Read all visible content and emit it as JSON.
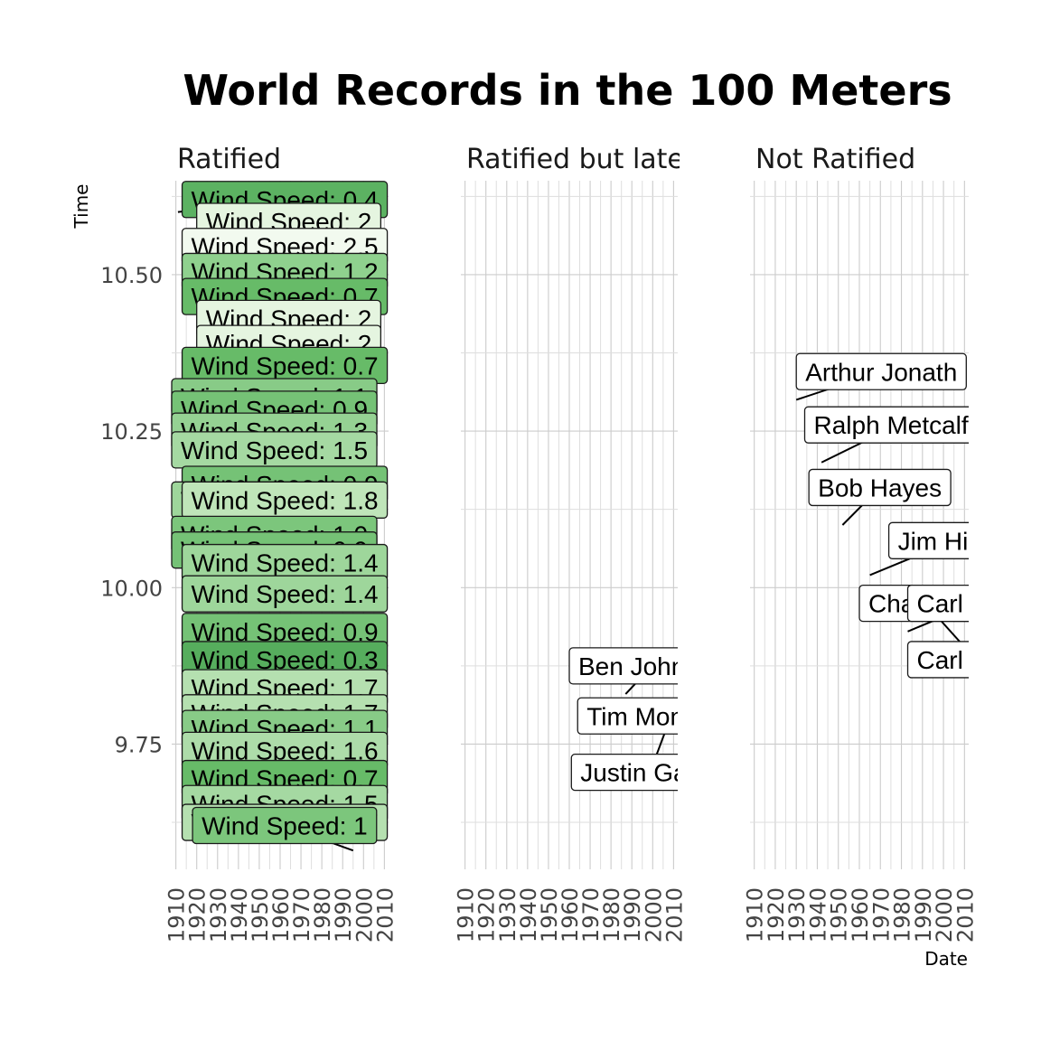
{
  "chart_data": {
    "type": "faceted-label-plot",
    "title": "World Records in the 100 Meters",
    "xlabel": "Date",
    "ylabel": "Time",
    "ylim": [
      9.55,
      10.65
    ],
    "xlim": [
      1908,
      2012
    ],
    "y_ticks": [
      {
        "value": 9.75,
        "label": "9.75"
      },
      {
        "value": 10.0,
        "label": "10.00"
      },
      {
        "value": 10.25,
        "label": "10.25"
      },
      {
        "value": 10.5,
        "label": "10.50"
      }
    ],
    "x_ticks": [
      "1910",
      "1920",
      "1930",
      "1940",
      "1950",
      "1960",
      "1970",
      "1980",
      "1990",
      "2000",
      "2010"
    ],
    "facets": [
      {
        "name": "Ratified",
        "points": [
          {
            "x": 1911,
            "y": 10.6,
            "lx": 1913,
            "ly": 10.62,
            "label": "Wind Speed: 0.4",
            "fill": "#5cb262"
          },
          {
            "x": 1913,
            "y": 10.56,
            "lx": 1920,
            "ly": 10.585,
            "label": "Wind Speed: 2",
            "fill": "#e5f5e0"
          },
          {
            "x": 1917,
            "y": 10.53,
            "lx": 1913,
            "ly": 10.545,
            "label": "Wind Speed: 2.5",
            "fill": "#f2faef"
          },
          {
            "x": 1930,
            "y": 10.55,
            "lx": 1913,
            "ly": 10.505,
            "label": "Wind Speed: 1.2",
            "fill": "#8fd18e"
          },
          {
            "x": 1926,
            "y": 10.42,
            "lx": 1913,
            "ly": 10.465,
            "label": "Wind Speed: 0.7",
            "fill": "#67bb68"
          },
          {
            "x": 1935,
            "y": 10.45,
            "lx": 1920,
            "ly": 10.43,
            "label": "Wind Speed: 2",
            "fill": "#e5f5e0"
          },
          {
            "x": 1933,
            "y": 10.38,
            "lx": 1920,
            "ly": 10.39,
            "label": "Wind Speed: 2",
            "fill": "#e5f5e0"
          },
          {
            "x": 1936,
            "y": 10.35,
            "lx": 1913,
            "ly": 10.355,
            "label": "Wind Speed: 0.7",
            "fill": "#67bb68"
          },
          {
            "x": 1940,
            "y": 10.3,
            "lx": 1908,
            "ly": 10.305,
            "label": "Wind Speed: 1.1",
            "fill": "#88cb87"
          },
          {
            "x": 1941,
            "y": 10.28,
            "lx": 1908,
            "ly": 10.285,
            "label": "Wind Speed: 0.9",
            "fill": "#75c276"
          },
          {
            "x": 1945,
            "y": 10.22,
            "lx": 1908,
            "ly": 10.25,
            "label": "Wind Speed: 1.3",
            "fill": "#95d293"
          },
          {
            "x": 1935,
            "y": 10.2,
            "lx": 1908,
            "ly": 10.22,
            "label": "Wind Speed: 1.5",
            "fill": "#a5d9a2"
          },
          {
            "x": 1950,
            "y": 10.18,
            "lx": 1913,
            "ly": 10.165,
            "label": "Wind Speed: 0.9",
            "fill": "#75c276"
          },
          {
            "x": 1955,
            "y": 10.15,
            "lx": 1908,
            "ly": 10.14,
            "label": "Wind Speed: 1.4",
            "fill": "#9ed69b"
          },
          {
            "x": 1960,
            "y": 10.1,
            "lx": 1913,
            "ly": 10.14,
            "label": "Wind Speed: 1.8",
            "fill": "#bfe5b9"
          },
          {
            "x": 1962,
            "y": 10.08,
            "lx": 1908,
            "ly": 10.085,
            "label": "Wind Speed: 1.0",
            "fill": "#7cc67c"
          },
          {
            "x": 1964,
            "y": 10.05,
            "lx": 1908,
            "ly": 10.06,
            "label": "Wind Speed: 0.9",
            "fill": "#75c276"
          },
          {
            "x": 1958,
            "y": 10.02,
            "lx": 1913,
            "ly": 10.04,
            "label": "Wind Speed: 1.4",
            "fill": "#9ed69b"
          },
          {
            "x": 1960,
            "y": 9.99,
            "lx": 1913,
            "ly": 9.99,
            "label": "Wind Speed: 1.4",
            "fill": "#9ed69b"
          },
          {
            "x": 1977,
            "y": 9.95,
            "lx": 1913,
            "ly": 9.93,
            "label": "Wind Speed: 0.9",
            "fill": "#75c276"
          },
          {
            "x": 1968,
            "y": 9.9,
            "lx": 1913,
            "ly": 9.885,
            "label": "Wind Speed: 0.3",
            "fill": "#56ad5d"
          },
          {
            "x": 1975,
            "y": 9.85,
            "lx": 1913,
            "ly": 9.84,
            "label": "Wind Speed: 1.7",
            "fill": "#b5e0b0"
          },
          {
            "x": 1982,
            "y": 9.83,
            "lx": 1913,
            "ly": 9.8,
            "label": "Wind Speed: 1.7",
            "fill": "#b5e0b0"
          },
          {
            "x": 1988,
            "y": 9.79,
            "lx": 1913,
            "ly": 9.775,
            "label": "Wind Speed: 1.1",
            "fill": "#88cb87"
          },
          {
            "x": 1999,
            "y": 9.76,
            "lx": 1913,
            "ly": 9.74,
            "label": "Wind Speed: 1.6",
            "fill": "#addca9"
          },
          {
            "x": 1999,
            "y": 9.72,
            "lx": 1913,
            "ly": 9.695,
            "label": "Wind Speed: 0.7",
            "fill": "#67bb68"
          },
          {
            "x": 2005,
            "y": 9.69,
            "lx": 1913,
            "ly": 9.655,
            "label": "Wind Speed: 1.5",
            "fill": "#a5d9a2"
          },
          {
            "x": 2008,
            "y": 9.74,
            "lx": 1913,
            "ly": 9.625,
            "label": "Wind Speed: 1.7",
            "fill": "#b5e0b0"
          },
          {
            "x": 1995,
            "y": 9.58,
            "lx": 1918,
            "ly": 9.62,
            "label": "Wind Speed: 1",
            "fill": "#7cc67c"
          }
        ]
      },
      {
        "name": "Ratified but later rescinded",
        "points": [
          {
            "x": 1987,
            "y": 9.83,
            "lx": 1960,
            "ly": 9.875,
            "label": "Ben Johnson",
            "fill": "#ffffff"
          },
          {
            "x": 2002,
            "y": 9.78,
            "lx": 1964,
            "ly": 9.795,
            "label": "Tim Montgomery",
            "fill": "#ffffff"
          },
          {
            "x": 2006,
            "y": 9.77,
            "lx": 1961,
            "ly": 9.705,
            "label": "Justin Gatlin",
            "fill": "#ffffff"
          }
        ]
      },
      {
        "name": "Not Ratified",
        "points": [
          {
            "x": 1930,
            "y": 10.3,
            "lx": 1930,
            "ly": 10.345,
            "label": "Arthur Jonath",
            "fill": "#ffffff"
          },
          {
            "x": 1942,
            "y": 10.2,
            "lx": 1934,
            "ly": 10.26,
            "label": "Ralph Metcalfe",
            "fill": "#ffffff"
          },
          {
            "x": 1952,
            "y": 10.1,
            "lx": 1936,
            "ly": 10.16,
            "label": "Bob Hayes",
            "fill": "#ffffff"
          },
          {
            "x": 1965,
            "y": 10.02,
            "lx": 1974,
            "ly": 10.075,
            "label": "Jim Hines",
            "fill": "#ffffff"
          },
          {
            "x": 1968,
            "y": 10.0,
            "lx": 1960,
            "ly": 9.975,
            "label": "Charlie Greene",
            "fill": "#ffffff"
          },
          {
            "x": 1983,
            "y": 9.93,
            "lx": 1983,
            "ly": 9.975,
            "label": "Carl Lewis",
            "fill": "#ffffff"
          },
          {
            "x": 1990,
            "y": 9.98,
            "lx": 1983,
            "ly": 9.885,
            "label": "Carl Lewis",
            "fill": "#ffffff"
          }
        ]
      }
    ]
  }
}
